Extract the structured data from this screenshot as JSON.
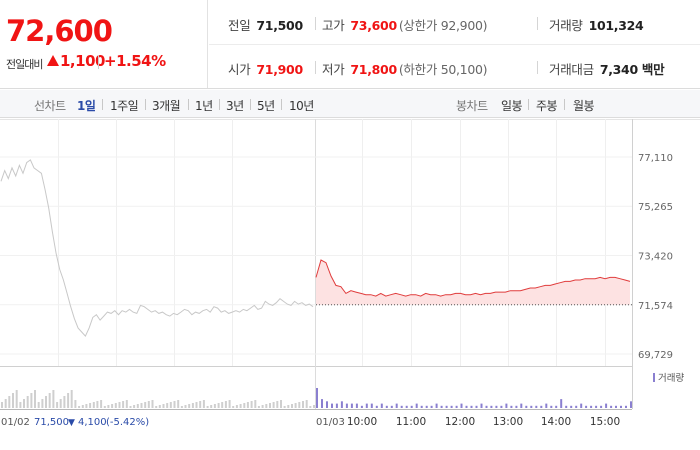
{
  "quote": {
    "price": "72,600",
    "change_label": "전일대비",
    "change_value": "1,100",
    "change_pct": "+1.54%",
    "color_up": "#f01414"
  },
  "stats": {
    "prev_close": {
      "label": "전일",
      "value": "71,500"
    },
    "high": {
      "label": "고가",
      "value": "73,600",
      "sub": "(상한가 92,900)"
    },
    "volume": {
      "label": "거래량",
      "value": "101,324"
    },
    "open": {
      "label": "시가",
      "value": "71,900"
    },
    "low": {
      "label": "저가",
      "value": "71,800",
      "sub": "(하한가 50,100)"
    },
    "trade_value": {
      "label": "거래대금",
      "value": "7,340 백만"
    }
  },
  "toolbar": {
    "line_title": "선차트",
    "line_periods": [
      "1일",
      "1주일",
      "3개월",
      "1년",
      "3년",
      "5년",
      "10년"
    ],
    "active_period": "1일",
    "candle_title": "봉차트",
    "candle_periods": [
      "일봉",
      "주봉",
      "월봉"
    ]
  },
  "chart_data": {
    "type": "line",
    "y_ticks": [
      "77,110",
      "75,265",
      "73,420",
      "71,574",
      "69,729"
    ],
    "ylim": [
      69729,
      77110
    ],
    "reference_price": 71574,
    "prev_day": {
      "date": "01/02",
      "summary_price": "71,500",
      "summary_change": "4,100",
      "summary_pct": "(-5.42%)",
      "values": [
        76200,
        76600,
        76300,
        76700,
        76400,
        76800,
        76500,
        76900,
        77000,
        76700,
        76600,
        76500,
        75900,
        75200,
        74300,
        73500,
        72900,
        72500,
        72000,
        71500,
        71050,
        70700,
        70550,
        70400,
        70700,
        71100,
        71200,
        71000,
        71150,
        71300,
        71250,
        71350,
        71200,
        71350,
        71300,
        71400,
        71300,
        71250,
        71550,
        71500,
        71400,
        71300,
        71350,
        71250,
        71300,
        71200,
        71150,
        71250,
        71200,
        71300,
        71400,
        71350,
        71200,
        71300,
        71250,
        71350,
        71400,
        71300,
        71500,
        71450,
        71300,
        71350,
        71250,
        71300,
        71350,
        71300,
        71400,
        71350,
        71450,
        71550,
        71400,
        71450,
        71700,
        71600,
        71550,
        71650,
        71800,
        71700,
        71600,
        71550,
        71700,
        71600,
        71650,
        71550,
        71600,
        71500
      ]
    },
    "today": {
      "date": "01/03",
      "time_labels": [
        "10:00",
        "11:00",
        "12:00",
        "13:00",
        "14:00",
        "15:00"
      ],
      "values": [
        72600,
        73250,
        73150,
        72650,
        72300,
        72250,
        72000,
        72100,
        72050,
        72000,
        71950,
        71950,
        71900,
        72000,
        71900,
        71950,
        72000,
        71950,
        71900,
        71950,
        71950,
        71900,
        72000,
        71950,
        71950,
        71900,
        71950,
        71950,
        72000,
        72000,
        71950,
        71950,
        72000,
        71950,
        72000,
        72000,
        72050,
        72050,
        72050,
        72100,
        72100,
        72100,
        72150,
        72200,
        72200,
        72250,
        72300,
        72300,
        72350,
        72400,
        72450,
        72450,
        72500,
        72500,
        72550,
        72550,
        72550,
        72600,
        72550,
        72600,
        72600,
        72550,
        72500,
        72450
      ],
      "volume": [
        9,
        4,
        3,
        2,
        2,
        3,
        2,
        2,
        2,
        1,
        2,
        2,
        1,
        2,
        1,
        1,
        2,
        1,
        1,
        1,
        2,
        1,
        1,
        1,
        2,
        1,
        1,
        1,
        1,
        2,
        1,
        1,
        1,
        2,
        1,
        1,
        1,
        1,
        2,
        1,
        1,
        2,
        1,
        1,
        1,
        1,
        2,
        1,
        1,
        4,
        1,
        1,
        1,
        2,
        1,
        1,
        1,
        1,
        2,
        1,
        1,
        1,
        1,
        3
      ]
    },
    "volume_legend": "거래량",
    "colors": {
      "prev_line": "#c8c8c8",
      "today_line": "#e03c3c",
      "today_fill": "#fde2e2",
      "volume_prev": "#cfcfcf",
      "volume_today": "#8a7fd0"
    }
  }
}
